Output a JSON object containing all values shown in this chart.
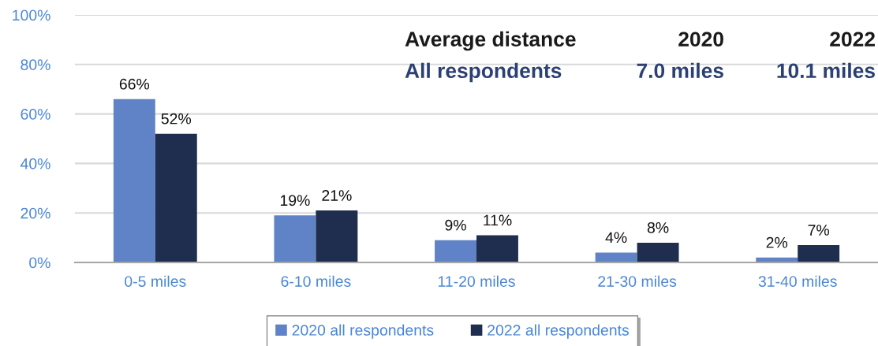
{
  "chart_data": {
    "type": "bar",
    "categories": [
      "0-5 miles",
      "6-10 miles",
      "11-20 miles",
      "21-30 miles",
      "31-40 miles"
    ],
    "series": [
      {
        "name": "2020 all respondents",
        "color": "#5f83c6",
        "values": [
          66,
          19,
          9,
          4,
          2
        ],
        "value_labels": [
          "66%",
          "19%",
          "9%",
          "4%",
          "2%"
        ]
      },
      {
        "name": "2022 all respondents",
        "color": "#1f2d4f",
        "values": [
          52,
          21,
          11,
          8,
          7
        ],
        "value_labels": [
          "52%",
          "21%",
          "11%",
          "8%",
          "7%"
        ]
      }
    ],
    "ylim": [
      0,
      100
    ],
    "yticks": [
      {
        "value": 0,
        "label": "0%"
      },
      {
        "value": 20,
        "label": "20%"
      },
      {
        "value": 40,
        "label": "40%"
      },
      {
        "value": 60,
        "label": "60%"
      },
      {
        "value": 80,
        "label": "80%"
      },
      {
        "value": 100,
        "label": "100%"
      }
    ],
    "grid": "y",
    "legend": "bottom",
    "annotations": [
      "Average distance",
      "2020",
      "2022",
      "All respondents",
      "7.0 miles",
      "10.1 miles"
    ]
  }
}
